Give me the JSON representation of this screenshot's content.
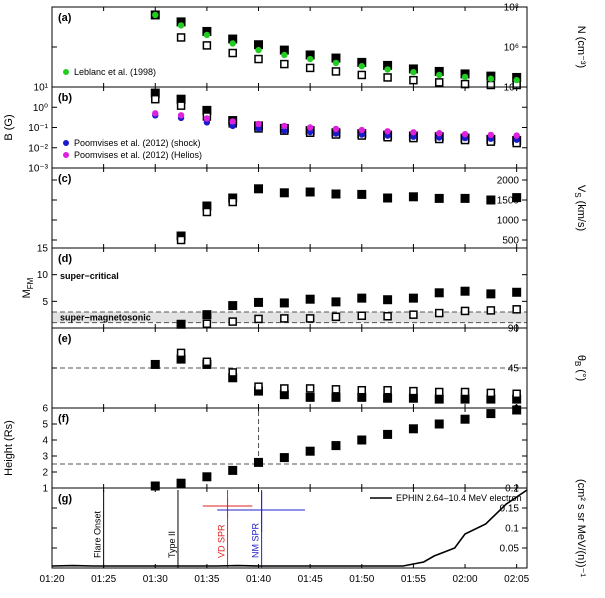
{
  "chart_data": {
    "type": "scatter",
    "time_axis": {
      "label": "",
      "ticks": [
        "01:20",
        "01:25",
        "01:30",
        "01:35",
        "01:40",
        "01:45",
        "01:50",
        "01:55",
        "02:00",
        "02:05"
      ],
      "range_min": [
        80,
        126
      ]
    },
    "panels": [
      {
        "id": "a",
        "label": "(a)",
        "ylabel": "N (cm⁻³)",
        "yscale": "log",
        "ylim": [
          10000,
          100000000
        ],
        "ticks": [
          "10⁴",
          "10⁶",
          "10⁸"
        ],
        "tick_values": [
          10000,
          1000000,
          100000000
        ],
        "series": [
          {
            "name": "filled",
            "marker": "filled-square",
            "color": "#000000",
            "x": [
              90,
              92.5,
              95,
              97.5,
              100,
              102.5,
              105,
              107.5,
              110,
              112.5,
              115,
              117.5,
              120,
              122.5,
              125
            ],
            "y": [
              40000000,
              18000000,
              6000000,
              2500000,
              1300000,
              700000,
              400000,
              280000,
              170000,
              120000,
              80000,
              60000,
              45000,
              35000,
              30000
            ]
          },
          {
            "name": "open",
            "marker": "open-square",
            "color": "#000000",
            "x": [
              92.5,
              95,
              97.5,
              100,
              102.5,
              105,
              107.5,
              110,
              112.5,
              115,
              117.5,
              120,
              122.5,
              125
            ],
            "y": [
              3000000,
              1200000,
              500000,
              250000,
              140000,
              90000,
              60000,
              40000,
              30000,
              22000,
              17000,
              14000,
              12000,
              10000
            ]
          },
          {
            "name": "Leblanc et al. (1998)",
            "marker": "circle",
            "color": "#22cc22",
            "x": [
              90,
              92.5,
              95,
              97.5,
              100,
              102.5,
              105,
              107.5,
              110,
              112.5,
              115,
              117.5,
              120,
              122.5,
              125
            ],
            "y": [
              40000000,
              12000000,
              4000000,
              1500000,
              700000,
              400000,
              250000,
              160000,
              110000,
              75000,
              55000,
              40000,
              32000,
              26000,
              22000
            ]
          }
        ],
        "legend": [
          "Leblanc et al. (1998)"
        ]
      },
      {
        "id": "b",
        "label": "(b)",
        "ylabel": "B (G)",
        "yscale": "log",
        "ylim": [
          0.001,
          10
        ],
        "ticks": [
          "10⁻³",
          "10⁻²",
          "10⁻¹",
          "10⁰",
          "10¹"
        ],
        "tick_values": [
          0.001,
          0.01,
          0.1,
          1,
          10
        ],
        "series": [
          {
            "name": "filled",
            "marker": "filled-square",
            "color": "#000000",
            "x": [
              90,
              92.5,
              95,
              97.5,
              100,
              102.5,
              105,
              107.5,
              110,
              112.5,
              115,
              117.5,
              120,
              122.5,
              125
            ],
            "y": [
              5,
              2.5,
              0.7,
              0.22,
              0.12,
              0.09,
              0.07,
              0.055,
              0.05,
              0.042,
              0.038,
              0.035,
              0.03,
              0.026,
              0.023
            ]
          },
          {
            "name": "open",
            "marker": "open-square",
            "color": "#000000",
            "x": [
              90,
              92.5,
              95,
              97.5,
              100,
              102.5,
              105,
              107.5,
              110,
              112.5,
              115,
              117.5,
              120,
              122.5,
              125
            ],
            "y": [
              2.5,
              1.2,
              0.35,
              0.16,
              0.09,
              0.07,
              0.055,
              0.045,
              0.04,
              0.033,
              0.03,
              0.027,
              0.024,
              0.02,
              0.017
            ]
          },
          {
            "name": "Poomvises et al. (2012) (shock)",
            "marker": "circle",
            "color": "#1a1acc",
            "x": [
              90,
              92.5,
              95,
              97.5,
              100,
              102.5,
              105,
              107.5,
              110,
              112.5,
              115,
              117.5,
              120,
              122.5,
              125
            ],
            "y": [
              0.4,
              0.3,
              0.18,
              0.12,
              0.09,
              0.07,
              0.06,
              0.05,
              0.045,
              0.04,
              0.035,
              0.032,
              0.03,
              0.028,
              0.025
            ]
          },
          {
            "name": "Poomvises et al. (2012) (Helios)",
            "marker": "circle",
            "color": "#dd22dd",
            "x": [
              90,
              92.5,
              95,
              97.5,
              100,
              102.5,
              105,
              107.5,
              110,
              112.5,
              115,
              117.5,
              120,
              122.5,
              125
            ],
            "y": [
              0.5,
              0.4,
              0.28,
              0.2,
              0.15,
              0.12,
              0.1,
              0.085,
              0.075,
              0.065,
              0.058,
              0.052,
              0.047,
              0.043,
              0.04
            ]
          }
        ],
        "legend": [
          "Poomvises et al. (2012) (shock)",
          "Poomvises et al. (2012) (Helios)"
        ]
      },
      {
        "id": "c",
        "label": "(c)",
        "ylabel": "V",
        "ylabel_sub": "S",
        "ylabel_tail": " (km/s)",
        "yscale": "linear",
        "ylim": [
          300,
          2300
        ],
        "ticks": [
          "500",
          "1000",
          "1500",
          "2000"
        ],
        "tick_values": [
          500,
          1000,
          1500,
          2000
        ],
        "series": [
          {
            "name": "filled",
            "marker": "filled-square",
            "color": "#000000",
            "x": [
              92.5,
              95,
              97.5,
              100,
              102.5,
              105,
              107.5,
              110,
              112.5,
              115,
              117.5,
              120,
              122.5,
              125
            ],
            "y": [
              600,
              1350,
              1550,
              1780,
              1680,
              1700,
              1650,
              1640,
              1550,
              1580,
              1540,
              1540,
              1500,
              1560
            ]
          },
          {
            "name": "open",
            "marker": "open-square",
            "color": "#000000",
            "x": [
              92.5,
              95,
              97.5
            ],
            "y": [
              500,
              1200,
              1450
            ]
          }
        ]
      },
      {
        "id": "d",
        "label": "(d)",
        "ylabel": "M",
        "ylabel_sub": "FM",
        "yscale": "linear",
        "ylim": [
          0,
          15
        ],
        "ticks": [
          "5",
          "10",
          "15"
        ],
        "tick_values": [
          5,
          10,
          15
        ],
        "band": [
          1,
          3
        ],
        "hlines": [
          1,
          3
        ],
        "band_text": "super−magnetosonic",
        "region_text": "super−critical",
        "series": [
          {
            "name": "filled",
            "marker": "filled-square",
            "color": "#000000",
            "x": [
              92.5,
              95,
              97.5,
              100,
              102.5,
              105,
              107.5,
              110,
              112.5,
              115,
              117.5,
              120,
              122.5,
              125
            ],
            "y": [
              0.7,
              2.5,
              4.2,
              4.8,
              4.7,
              5.4,
              4.9,
              5.6,
              5.3,
              5.6,
              6.6,
              6.9,
              6.4,
              6.7
            ]
          },
          {
            "name": "open",
            "marker": "open-square",
            "color": "#000000",
            "x": [
              95,
              97.5,
              100,
              102.5,
              105,
              107.5,
              110,
              112.5,
              115,
              117.5,
              120,
              122.5,
              125
            ],
            "y": [
              0.8,
              1.2,
              1.7,
              1.8,
              1.8,
              2.1,
              2.3,
              2.2,
              2.5,
              2.8,
              3.2,
              3.3,
              3.5
            ]
          }
        ]
      },
      {
        "id": "e",
        "label": "(e)",
        "ylabel": "θ",
        "ylabel_sub": "B",
        "ylabel_tail": " (°)",
        "yscale": "linear",
        "ylim": [
          0,
          90
        ],
        "ticks": [
          "0",
          "45",
          "90"
        ],
        "tick_values": [
          0,
          45,
          90
        ],
        "hlines": [
          45
        ],
        "series": [
          {
            "name": "filled",
            "marker": "filled-square",
            "color": "#000000",
            "x": [
              90,
              92.5,
              95,
              97.5,
              100,
              102.5,
              105,
              107.5,
              110,
              112.5,
              115,
              117.5,
              120,
              122.5,
              125
            ],
            "y": [
              49,
              55,
              49,
              34,
              19,
              15,
              12,
              12,
              12,
              11,
              11,
              10,
              10,
              10,
              10
            ]
          },
          {
            "name": "open",
            "marker": "open-square",
            "color": "#000000",
            "x": [
              92.5,
              95,
              97.5,
              100,
              102.5,
              105,
              107.5,
              110,
              112.5,
              115,
              117.5,
              120,
              122.5,
              125
            ],
            "y": [
              62,
              52,
              40,
              24,
              22,
              22,
              21,
              20,
              20,
              19,
              18,
              18,
              17,
              16
            ]
          }
        ]
      },
      {
        "id": "f",
        "label": "(f)",
        "ylabel": "Height (Rs)",
        "yscale": "linear",
        "ylim": [
          1,
          6
        ],
        "ticks": [
          "1",
          "2",
          "3",
          "4",
          "5",
          "6"
        ],
        "tick_values": [
          1,
          2,
          3,
          4,
          5,
          6
        ],
        "hlines": [
          2.5
        ],
        "vline": 100,
        "series": [
          {
            "name": "filled",
            "marker": "filled-square",
            "color": "#000000",
            "x": [
              90,
              92.5,
              95,
              97.5,
              100,
              102.5,
              105,
              107.5,
              110,
              112.5,
              115,
              117.5,
              120,
              122.5,
              125
            ],
            "y": [
              1.1,
              1.3,
              1.7,
              2.1,
              2.6,
              2.9,
              3.3,
              3.65,
              4.0,
              4.35,
              4.7,
              5.0,
              5.3,
              5.65,
              5.9
            ]
          }
        ]
      },
      {
        "id": "g",
        "label": "(g)",
        "ylabel": "(cm² s sr MeV/(n))⁻¹",
        "yscale": "linear",
        "ylim": [
          0,
          0.2
        ],
        "ticks": [
          "0.05",
          "0.1",
          "0.15",
          "0.2"
        ],
        "tick_values": [
          0.05,
          0.1,
          0.15,
          0.2
        ],
        "legend": [
          "EPHIN 2.64–10.4 MeV electron"
        ],
        "series": [
          {
            "name": "EPHIN 2.64–10.4 MeV electron",
            "marker": "line",
            "color": "#000000",
            "x": [
              80,
              82,
              84,
              86,
              88,
              90,
              92,
              94,
              96,
              98,
              100,
              102,
              104,
              106,
              108,
              110,
              112,
              114,
              116,
              117,
              118,
              119,
              120,
              122,
              124,
              126
            ],
            "y": [
              0.004,
              0.006,
              0.003,
              0.005,
              0.004,
              0.005,
              0.003,
              0.005,
              0.004,
              0.006,
              0.004,
              0.005,
              0.003,
              0.005,
              0.004,
              0.005,
              0.004,
              0.005,
              0.015,
              0.03,
              0.04,
              0.05,
              0.085,
              0.11,
              0.16,
              0.205
            ]
          }
        ],
        "events": [
          {
            "label": "Flare Onset",
            "time": 85,
            "color": "#000000"
          },
          {
            "label": "Type II",
            "time": 92.2,
            "color": "#000000"
          },
          {
            "label": "VD SPR",
            "time": 97,
            "color": "#dd2222",
            "err_time": [
              94.6,
              99.4
            ],
            "err_y": [
              0.125,
              0.175
            ],
            "cross_y": 0.155
          },
          {
            "label": "NM SPR",
            "time": 100.3,
            "color": "#2222cc",
            "err_time": [
              96,
              104.5
            ],
            "err_y": [
              0.09,
              0.19
            ],
            "cross_y": 0.145
          }
        ]
      }
    ]
  }
}
